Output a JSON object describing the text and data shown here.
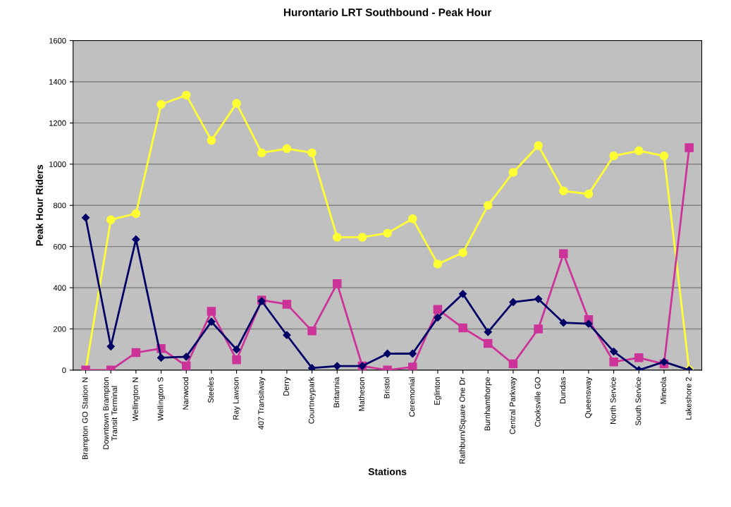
{
  "chart_data": {
    "type": "line",
    "title": "Hurontario LRT Southbound - Peak Hour",
    "xlabel": "Stations",
    "ylabel": "Peak Hour Riders",
    "categories": [
      "Brampton GO Station N",
      "Downtown Brampton\nTransit Terminal",
      "Wellington N",
      "Wellington S",
      "Nanwood",
      "Steeles",
      "Ray Lawson",
      "407 Transitway",
      "Derry",
      "Courtneypark",
      "Britannia",
      "Matheson",
      "Bristol",
      "Ceremonial",
      "Eglinton",
      "Rathburn/Square One Dr",
      "Burnhamthorpe",
      "Central Parkway",
      "Cooksville GO",
      "Dundas",
      "Queensway",
      "North Service",
      "South Service",
      "Mineola",
      "Lakeshore 2"
    ],
    "series": [
      {
        "color": "#000066",
        "marker": "diamond",
        "values": [
          740,
          115,
          635,
          60,
          65,
          235,
          100,
          335,
          170,
          10,
          20,
          20,
          80,
          80,
          255,
          370,
          185,
          330,
          345,
          230,
          225,
          90,
          0,
          40,
          0
        ]
      },
      {
        "color": "#cc3399",
        "marker": "square",
        "values": [
          0,
          0,
          85,
          105,
          20,
          285,
          50,
          340,
          320,
          190,
          420,
          20,
          0,
          15,
          295,
          205,
          130,
          30,
          200,
          565,
          245,
          40,
          60,
          30,
          1080
        ]
      },
      {
        "color": "#ffff33",
        "marker": "circle",
        "values": [
          0,
          730,
          760,
          1290,
          1335,
          1115,
          1295,
          1055,
          1075,
          1055,
          645,
          645,
          665,
          735,
          515,
          570,
          800,
          960,
          1090,
          870,
          855,
          1040,
          1065,
          1040,
          0
        ]
      }
    ],
    "ylim": [
      0,
      1600
    ],
    "yticks": [
      0,
      200,
      400,
      600,
      800,
      1000,
      1200,
      1400,
      1600
    ],
    "grid": "y",
    "legend": false
  }
}
